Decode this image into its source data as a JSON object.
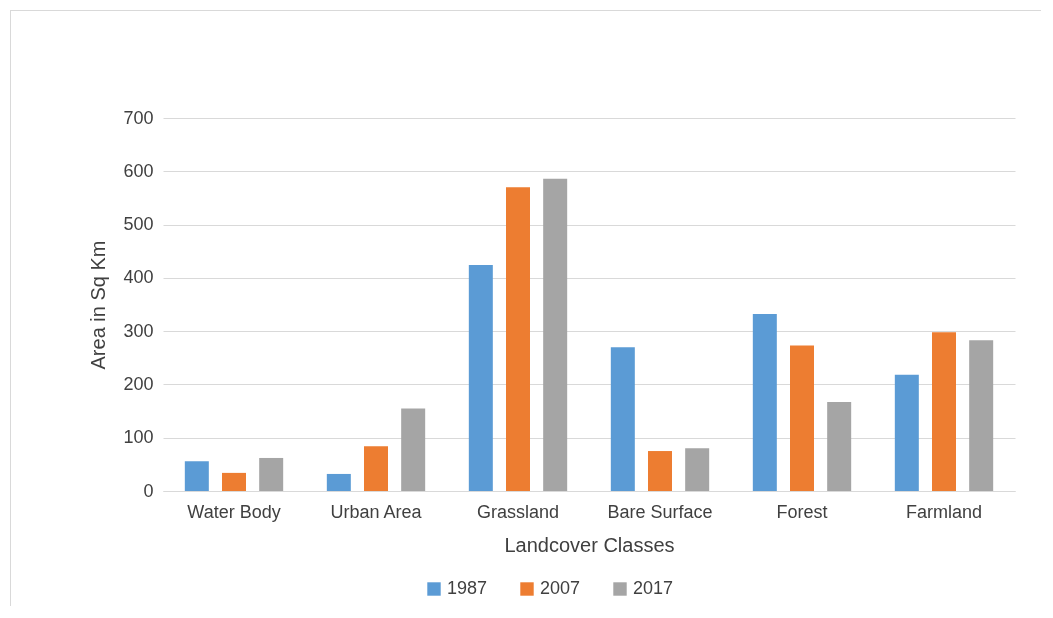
{
  "chart_data": {
    "type": "bar",
    "xlabel": "Landcover Classes",
    "ylabel": "Area in Sq Km",
    "categories": [
      "Water Body",
      "Urban Area",
      "Grassland",
      "Bare Surface",
      "Forest",
      "Farmland"
    ],
    "series": [
      {
        "name": "1987",
        "color": "#5b9bd5",
        "values": [
          56,
          32,
          424,
          270,
          332,
          218
        ]
      },
      {
        "name": "2007",
        "color": "#ed7d31",
        "values": [
          34,
          84,
          570,
          75,
          273,
          298
        ]
      },
      {
        "name": "2017",
        "color": "#a5a5a5",
        "values": [
          62,
          155,
          586,
          80,
          167,
          283
        ]
      }
    ],
    "ylim": [
      0,
      700
    ],
    "yticks": [
      0,
      100,
      200,
      300,
      400,
      500,
      600,
      700
    ],
    "grid": "y",
    "legend": "bottom"
  }
}
